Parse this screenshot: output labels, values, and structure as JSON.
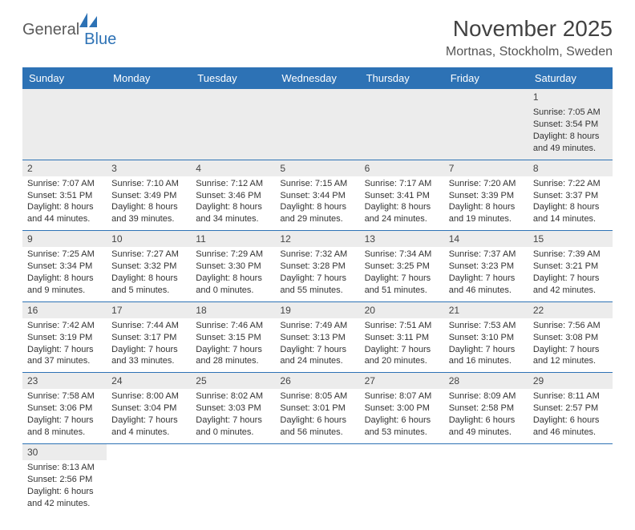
{
  "logo": {
    "text1": "General",
    "text2": "Blue"
  },
  "title": "November 2025",
  "location": "Mortnas, Stockholm, Sweden",
  "colors": {
    "header_bg": "#2d72b5",
    "header_text": "#ffffff",
    "daynum_bg": "#ececec",
    "border": "#2d72b5",
    "page_bg": "#ffffff",
    "title_color": "#424242"
  },
  "weekdays": [
    "Sunday",
    "Monday",
    "Tuesday",
    "Wednesday",
    "Thursday",
    "Friday",
    "Saturday"
  ],
  "weeks": [
    [
      null,
      null,
      null,
      null,
      null,
      null,
      {
        "d": "1",
        "sr": "Sunrise: 7:05 AM",
        "ss": "Sunset: 3:54 PM",
        "dl1": "Daylight: 8 hours",
        "dl2": "and 49 minutes."
      }
    ],
    [
      {
        "d": "2",
        "sr": "Sunrise: 7:07 AM",
        "ss": "Sunset: 3:51 PM",
        "dl1": "Daylight: 8 hours",
        "dl2": "and 44 minutes."
      },
      {
        "d": "3",
        "sr": "Sunrise: 7:10 AM",
        "ss": "Sunset: 3:49 PM",
        "dl1": "Daylight: 8 hours",
        "dl2": "and 39 minutes."
      },
      {
        "d": "4",
        "sr": "Sunrise: 7:12 AM",
        "ss": "Sunset: 3:46 PM",
        "dl1": "Daylight: 8 hours",
        "dl2": "and 34 minutes."
      },
      {
        "d": "5",
        "sr": "Sunrise: 7:15 AM",
        "ss": "Sunset: 3:44 PM",
        "dl1": "Daylight: 8 hours",
        "dl2": "and 29 minutes."
      },
      {
        "d": "6",
        "sr": "Sunrise: 7:17 AM",
        "ss": "Sunset: 3:41 PM",
        "dl1": "Daylight: 8 hours",
        "dl2": "and 24 minutes."
      },
      {
        "d": "7",
        "sr": "Sunrise: 7:20 AM",
        "ss": "Sunset: 3:39 PM",
        "dl1": "Daylight: 8 hours",
        "dl2": "and 19 minutes."
      },
      {
        "d": "8",
        "sr": "Sunrise: 7:22 AM",
        "ss": "Sunset: 3:37 PM",
        "dl1": "Daylight: 8 hours",
        "dl2": "and 14 minutes."
      }
    ],
    [
      {
        "d": "9",
        "sr": "Sunrise: 7:25 AM",
        "ss": "Sunset: 3:34 PM",
        "dl1": "Daylight: 8 hours",
        "dl2": "and 9 minutes."
      },
      {
        "d": "10",
        "sr": "Sunrise: 7:27 AM",
        "ss": "Sunset: 3:32 PM",
        "dl1": "Daylight: 8 hours",
        "dl2": "and 5 minutes."
      },
      {
        "d": "11",
        "sr": "Sunrise: 7:29 AM",
        "ss": "Sunset: 3:30 PM",
        "dl1": "Daylight: 8 hours",
        "dl2": "and 0 minutes."
      },
      {
        "d": "12",
        "sr": "Sunrise: 7:32 AM",
        "ss": "Sunset: 3:28 PM",
        "dl1": "Daylight: 7 hours",
        "dl2": "and 55 minutes."
      },
      {
        "d": "13",
        "sr": "Sunrise: 7:34 AM",
        "ss": "Sunset: 3:25 PM",
        "dl1": "Daylight: 7 hours",
        "dl2": "and 51 minutes."
      },
      {
        "d": "14",
        "sr": "Sunrise: 7:37 AM",
        "ss": "Sunset: 3:23 PM",
        "dl1": "Daylight: 7 hours",
        "dl2": "and 46 minutes."
      },
      {
        "d": "15",
        "sr": "Sunrise: 7:39 AM",
        "ss": "Sunset: 3:21 PM",
        "dl1": "Daylight: 7 hours",
        "dl2": "and 42 minutes."
      }
    ],
    [
      {
        "d": "16",
        "sr": "Sunrise: 7:42 AM",
        "ss": "Sunset: 3:19 PM",
        "dl1": "Daylight: 7 hours",
        "dl2": "and 37 minutes."
      },
      {
        "d": "17",
        "sr": "Sunrise: 7:44 AM",
        "ss": "Sunset: 3:17 PM",
        "dl1": "Daylight: 7 hours",
        "dl2": "and 33 minutes."
      },
      {
        "d": "18",
        "sr": "Sunrise: 7:46 AM",
        "ss": "Sunset: 3:15 PM",
        "dl1": "Daylight: 7 hours",
        "dl2": "and 28 minutes."
      },
      {
        "d": "19",
        "sr": "Sunrise: 7:49 AM",
        "ss": "Sunset: 3:13 PM",
        "dl1": "Daylight: 7 hours",
        "dl2": "and 24 minutes."
      },
      {
        "d": "20",
        "sr": "Sunrise: 7:51 AM",
        "ss": "Sunset: 3:11 PM",
        "dl1": "Daylight: 7 hours",
        "dl2": "and 20 minutes."
      },
      {
        "d": "21",
        "sr": "Sunrise: 7:53 AM",
        "ss": "Sunset: 3:10 PM",
        "dl1": "Daylight: 7 hours",
        "dl2": "and 16 minutes."
      },
      {
        "d": "22",
        "sr": "Sunrise: 7:56 AM",
        "ss": "Sunset: 3:08 PM",
        "dl1": "Daylight: 7 hours",
        "dl2": "and 12 minutes."
      }
    ],
    [
      {
        "d": "23",
        "sr": "Sunrise: 7:58 AM",
        "ss": "Sunset: 3:06 PM",
        "dl1": "Daylight: 7 hours",
        "dl2": "and 8 minutes."
      },
      {
        "d": "24",
        "sr": "Sunrise: 8:00 AM",
        "ss": "Sunset: 3:04 PM",
        "dl1": "Daylight: 7 hours",
        "dl2": "and 4 minutes."
      },
      {
        "d": "25",
        "sr": "Sunrise: 8:02 AM",
        "ss": "Sunset: 3:03 PM",
        "dl1": "Daylight: 7 hours",
        "dl2": "and 0 minutes."
      },
      {
        "d": "26",
        "sr": "Sunrise: 8:05 AM",
        "ss": "Sunset: 3:01 PM",
        "dl1": "Daylight: 6 hours",
        "dl2": "and 56 minutes."
      },
      {
        "d": "27",
        "sr": "Sunrise: 8:07 AM",
        "ss": "Sunset: 3:00 PM",
        "dl1": "Daylight: 6 hours",
        "dl2": "and 53 minutes."
      },
      {
        "d": "28",
        "sr": "Sunrise: 8:09 AM",
        "ss": "Sunset: 2:58 PM",
        "dl1": "Daylight: 6 hours",
        "dl2": "and 49 minutes."
      },
      {
        "d": "29",
        "sr": "Sunrise: 8:11 AM",
        "ss": "Sunset: 2:57 PM",
        "dl1": "Daylight: 6 hours",
        "dl2": "and 46 minutes."
      }
    ],
    [
      {
        "d": "30",
        "sr": "Sunrise: 8:13 AM",
        "ss": "Sunset: 2:56 PM",
        "dl1": "Daylight: 6 hours",
        "dl2": "and 42 minutes."
      },
      null,
      null,
      null,
      null,
      null,
      null
    ]
  ]
}
